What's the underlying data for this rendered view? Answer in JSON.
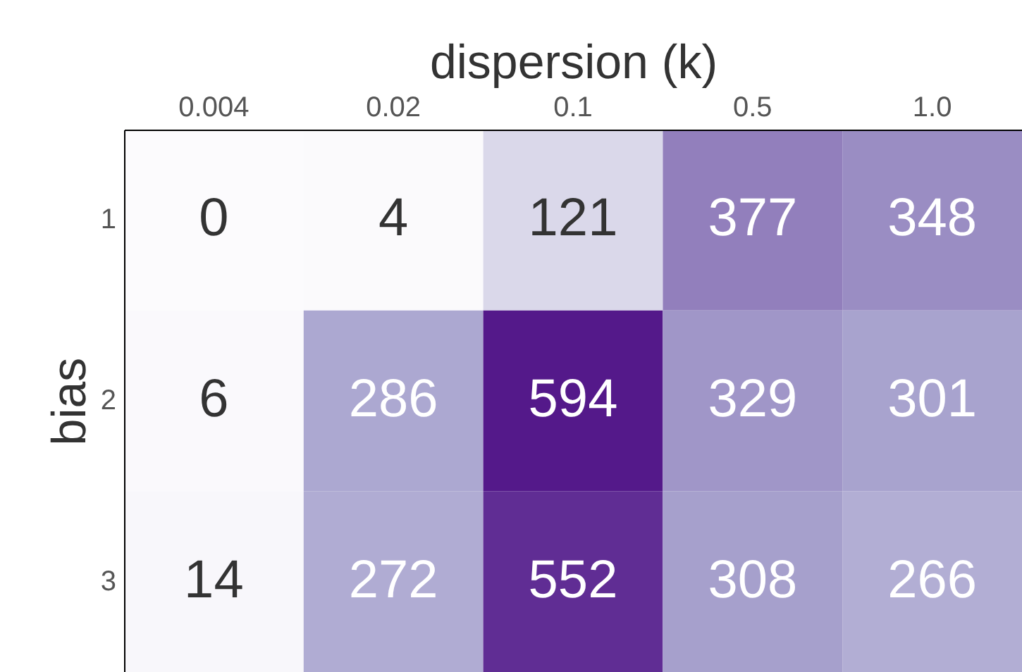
{
  "chart_data": {
    "type": "heatmap",
    "xlabel": "dispersion (k)",
    "ylabel": "bias",
    "categories": [
      "0.004",
      "0.02",
      "0.1",
      "0.5",
      "1.0"
    ],
    "y_categories": [
      "1",
      "2",
      "3"
    ],
    "cells": [
      [
        0,
        4,
        121,
        377,
        348
      ],
      [
        6,
        286,
        594,
        329,
        301
      ],
      [
        14,
        272,
        552,
        308,
        266
      ]
    ],
    "data_labels": true
  }
}
